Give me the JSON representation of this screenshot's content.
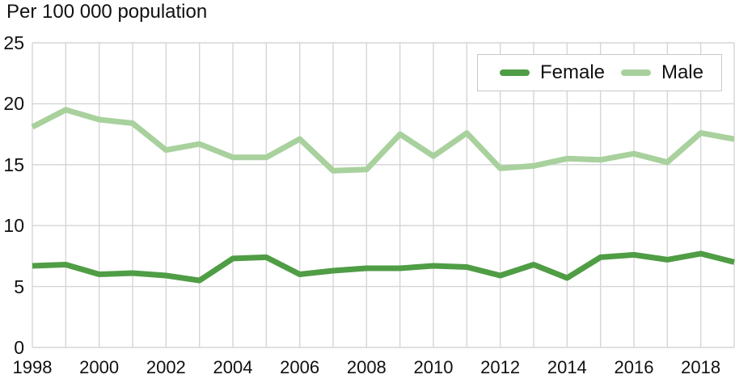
{
  "title": "Per 100 000 population",
  "colors": {
    "female_line": "#4f9d45",
    "male_line": "#a8d19d",
    "gridline": "#d5d5d5",
    "text": "#111111",
    "legend_border": "#c9c9c9",
    "background": "#ffffff"
  },
  "chart_data": {
    "type": "line",
    "title": "Per 100 000 population",
    "x": [
      1998,
      1999,
      2000,
      2001,
      2002,
      2003,
      2004,
      2005,
      2006,
      2007,
      2008,
      2009,
      2010,
      2011,
      2012,
      2013,
      2014,
      2015,
      2016,
      2017,
      2018,
      2019
    ],
    "series": [
      {
        "name": "Female",
        "color": "#4f9d45",
        "values": [
          6.7,
          6.8,
          6.0,
          6.1,
          5.9,
          5.5,
          7.3,
          7.4,
          6.0,
          6.3,
          6.5,
          6.5,
          6.7,
          6.6,
          5.9,
          6.8,
          5.7,
          7.4,
          7.6,
          7.2,
          7.7,
          7.0
        ]
      },
      {
        "name": "Male",
        "color": "#a8d19d",
        "values": [
          18.1,
          19.5,
          18.7,
          18.4,
          16.2,
          16.7,
          15.6,
          15.6,
          17.1,
          14.5,
          14.6,
          17.5,
          15.7,
          17.6,
          14.7,
          14.9,
          15.5,
          15.4,
          15.9,
          15.2,
          17.6,
          17.1
        ]
      }
    ],
    "ylim": [
      0,
      25
    ],
    "y_ticks": [
      0,
      5,
      10,
      15,
      20,
      25
    ],
    "x_tick_labels": [
      "1998",
      "2000",
      "2002",
      "2004",
      "2006",
      "2008",
      "2010",
      "2012",
      "2014",
      "2016",
      "2018"
    ],
    "grid": "both",
    "legend_position": "top-right"
  }
}
